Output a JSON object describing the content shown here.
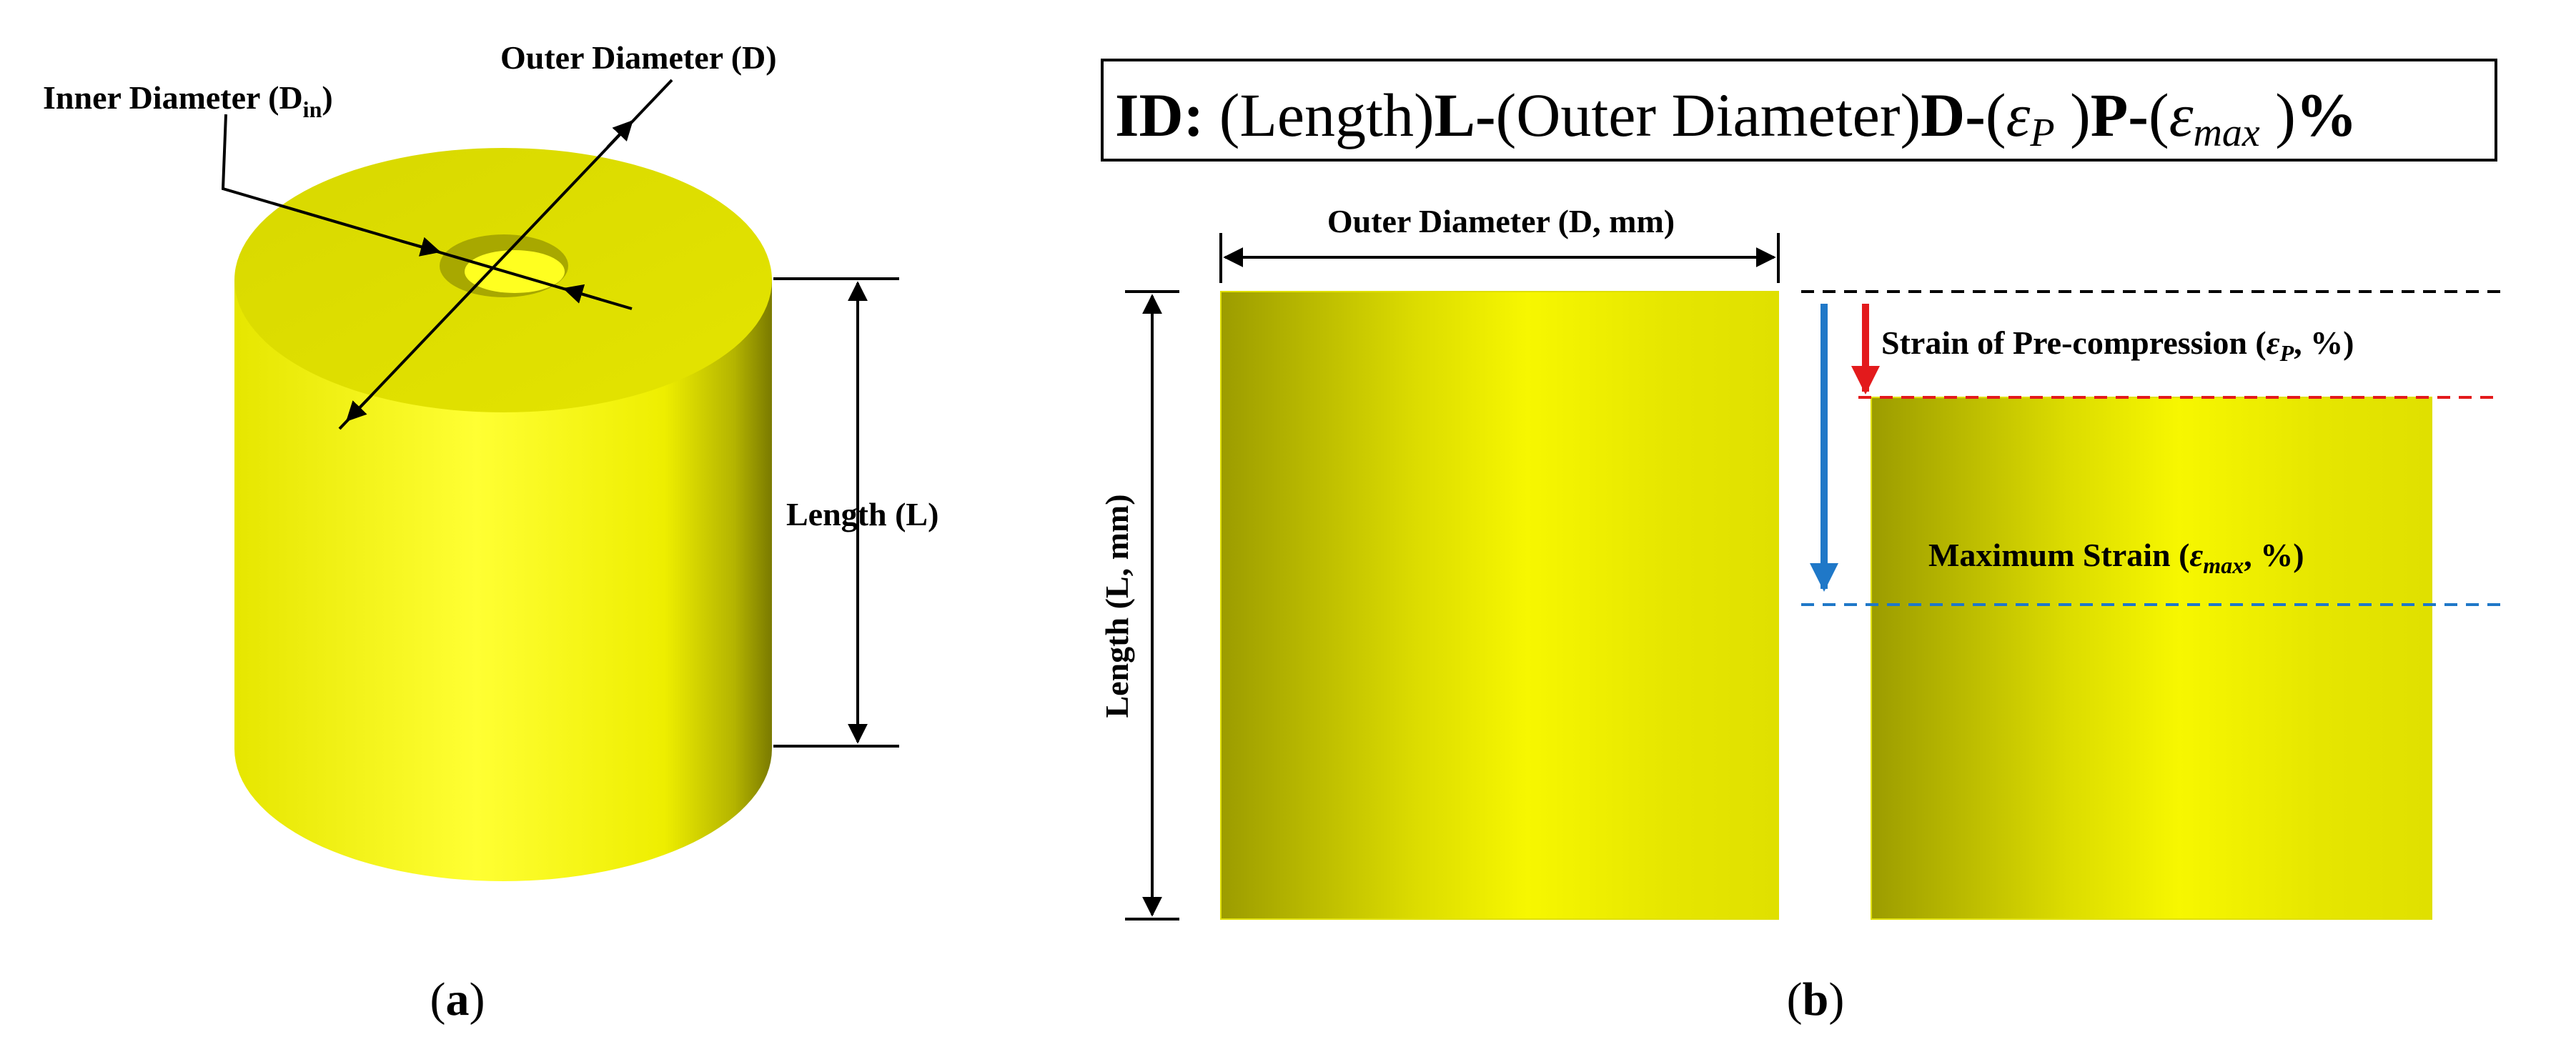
{
  "panel_a": {
    "outer_diameter_label": "Outer Diameter (D)",
    "inner_diameter_label_main": "Inner Diameter (D",
    "inner_diameter_label_sub": "in",
    "inner_diameter_label_close": ")",
    "length_label": "Length (L)",
    "caption_open": "(",
    "caption_letter": "a",
    "caption_close": ")"
  },
  "panel_b": {
    "id_prefix": "ID:",
    "id_t1": " (Length)",
    "id_t2": "L-",
    "id_t3": "(Outer Diameter)",
    "id_t4": "D-",
    "id_t5": "(",
    "id_eps": "ε",
    "id_sub_p": "P",
    "id_t6": " )",
    "id_t7": "P-",
    "id_t8": "(",
    "id_sub_max": "max",
    "id_t9": " )",
    "id_t10": "%",
    "outer_diameter_label": "Outer Diameter (D, mm)",
    "length_label": "Length (L, mm)",
    "precompression_label_text": "Strain of Pre-compression (",
    "precompression_eps": "ε",
    "precompression_sub": "P",
    "precompression_unit": ", %)",
    "max_strain_label_text": "Maximum Strain (",
    "max_strain_eps": "ε",
    "max_strain_sub": "max",
    "max_strain_unit": ", %)",
    "caption_open": "(",
    "caption_letter": "b",
    "caption_close": ")"
  },
  "colors": {
    "yellow": "#f2f200",
    "yellow_dark": "#9c9c00",
    "red": "#e31a1c",
    "blue": "#1f78c8",
    "black": "#000000"
  }
}
